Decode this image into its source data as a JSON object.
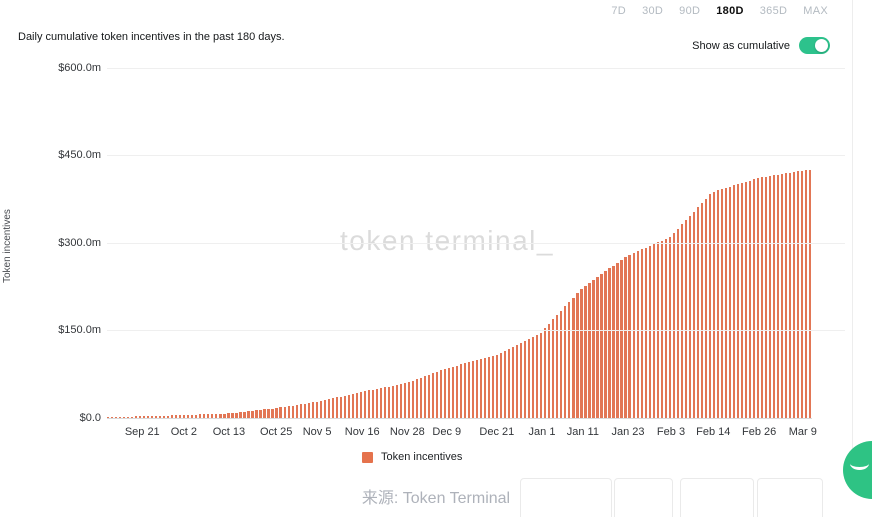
{
  "colors": {
    "accent_green": "#2DC28C",
    "bar": "#E27655",
    "legend_swatch": "#E5724C",
    "grid": "#EFEFEF",
    "muted_text": "#B3BAC1",
    "watermark": "#DBDBDB"
  },
  "range_selector": {
    "options": [
      "7D",
      "30D",
      "90D",
      "180D",
      "365D",
      "MAX"
    ],
    "selected": "180D"
  },
  "header": {
    "title": "Daily cumulative token incentives in the past 180 days.",
    "toggle_label": "Show as cumulative",
    "toggle_state": "on"
  },
  "chart_data": {
    "type": "bar",
    "title": "Daily cumulative token incentives in the past 180 days.",
    "ylabel": "Token incentives",
    "xlabel": "",
    "unit": "USD millions",
    "ylim": [
      0,
      600
    ],
    "grid": true,
    "legend_position": "bottom",
    "legend": [
      "Token incentives"
    ],
    "watermark": "token terminal_",
    "bar_count": 176,
    "y_ticks": [
      {
        "label": "$0.0",
        "value": 0
      },
      {
        "label": "$150.0m",
        "value": 150
      },
      {
        "label": "$300.0m",
        "value": 300
      },
      {
        "label": "$450.0m",
        "value": 450
      },
      {
        "label": "$600.0m",
        "value": 600
      }
    ],
    "x_ticks": [
      {
        "label": "Sep 21",
        "pos": 0.05
      },
      {
        "label": "Oct 2",
        "pos": 0.109
      },
      {
        "label": "Oct 13",
        "pos": 0.173
      },
      {
        "label": "Oct 25",
        "pos": 0.24
      },
      {
        "label": "Nov 5",
        "pos": 0.298
      },
      {
        "label": "Nov 16",
        "pos": 0.362
      },
      {
        "label": "Nov 28",
        "pos": 0.426
      },
      {
        "label": "Dec 9",
        "pos": 0.482
      },
      {
        "label": "Dec 21",
        "pos": 0.553
      },
      {
        "label": "Jan 1",
        "pos": 0.617
      },
      {
        "label": "Jan 11",
        "pos": 0.675
      },
      {
        "label": "Jan 23",
        "pos": 0.739
      },
      {
        "label": "Feb 3",
        "pos": 0.8
      },
      {
        "label": "Feb 14",
        "pos": 0.86
      },
      {
        "label": "Feb 26",
        "pos": 0.925
      },
      {
        "label": "Mar 9",
        "pos": 0.987
      }
    ],
    "series": [
      {
        "name": "Token incentives",
        "style": "daily vertical bars forming a cumulative curve",
        "anchors": [
          {
            "date": "Sep 10",
            "pos": 0.0,
            "value_m": 1
          },
          {
            "date": "Sep 21",
            "pos": 0.05,
            "value_m": 3
          },
          {
            "date": "Oct 2",
            "pos": 0.109,
            "value_m": 5
          },
          {
            "date": "Oct 13",
            "pos": 0.173,
            "value_m": 8
          },
          {
            "date": "Oct 25",
            "pos": 0.24,
            "value_m": 17
          },
          {
            "date": "Nov 5",
            "pos": 0.298,
            "value_m": 28
          },
          {
            "date": "Nov 16",
            "pos": 0.362,
            "value_m": 45
          },
          {
            "date": "Nov 28",
            "pos": 0.426,
            "value_m": 60
          },
          {
            "date": "Dec 9",
            "pos": 0.482,
            "value_m": 85
          },
          {
            "date": "Dec 21",
            "pos": 0.553,
            "value_m": 108
          },
          {
            "date": "Jan 1",
            "pos": 0.617,
            "value_m": 146
          },
          {
            "date": "Jan 6",
            "pos": 0.65,
            "value_m": 190
          },
          {
            "date": "Jan 11",
            "pos": 0.675,
            "value_m": 222
          },
          {
            "date": "Jan 23",
            "pos": 0.739,
            "value_m": 278
          },
          {
            "date": "Feb 3",
            "pos": 0.8,
            "value_m": 310
          },
          {
            "date": "Feb 14",
            "pos": 0.86,
            "value_m": 387
          },
          {
            "date": "Feb 26",
            "pos": 0.925,
            "value_m": 411
          },
          {
            "date": "Mar 9",
            "pos": 0.987,
            "value_m": 424
          },
          {
            "date": "Mar 10",
            "pos": 1.0,
            "value_m": 425
          }
        ]
      }
    ]
  },
  "legend": {
    "token_incentives": "Token incentives"
  },
  "footer": {
    "source_caption": "来源: Token Terminal"
  }
}
